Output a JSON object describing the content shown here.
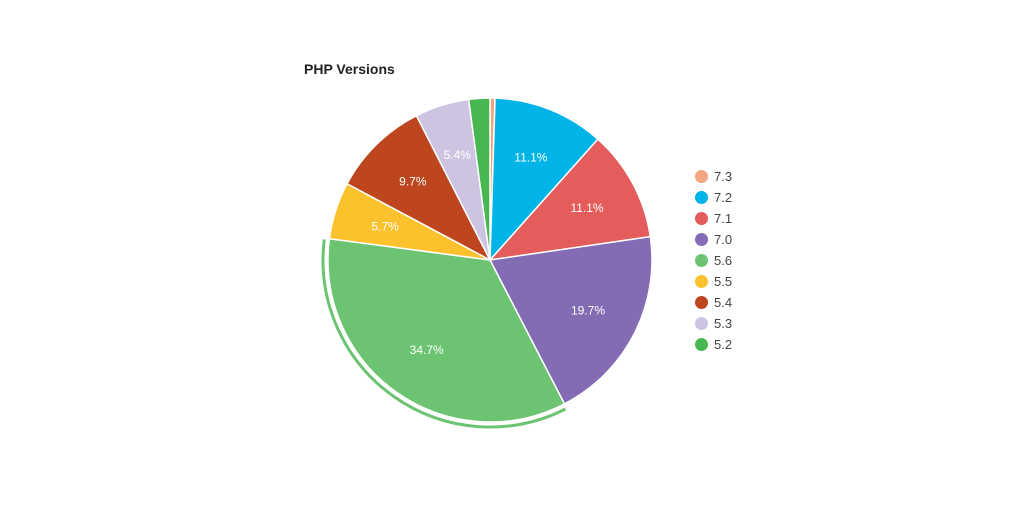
{
  "chart_data": {
    "type": "pie",
    "title": "PHP Versions",
    "categories": [
      "7.3",
      "7.2",
      "7.1",
      "7.0",
      "5.6",
      "5.5",
      "5.4",
      "5.3",
      "5.2"
    ],
    "values": [
      0.5,
      11.1,
      11.1,
      19.7,
      34.7,
      5.7,
      9.7,
      5.4,
      2.1
    ],
    "labels": [
      "",
      "11.1%",
      "11.1%",
      "19.7%",
      "34.7%",
      "5.7%",
      "9.7%",
      "5.4%",
      ""
    ],
    "colors": [
      "#f4a582",
      "#00b4e8",
      "#e45c5c",
      "#846cb4",
      "#6cc472",
      "#fcc22e",
      "#bd461e",
      "#cdc4e2",
      "#48b752"
    ],
    "highlighted": "5.6",
    "legend_position": "right",
    "start_angle_deg": 0,
    "direction": "clockwise"
  },
  "legend": [
    {
      "label": "7.3"
    },
    {
      "label": "7.2"
    },
    {
      "label": "7.1"
    },
    {
      "label": "7.0"
    },
    {
      "label": "5.6"
    },
    {
      "label": "5.5"
    },
    {
      "label": "5.4"
    },
    {
      "label": "5.3"
    },
    {
      "label": "5.2"
    }
  ]
}
